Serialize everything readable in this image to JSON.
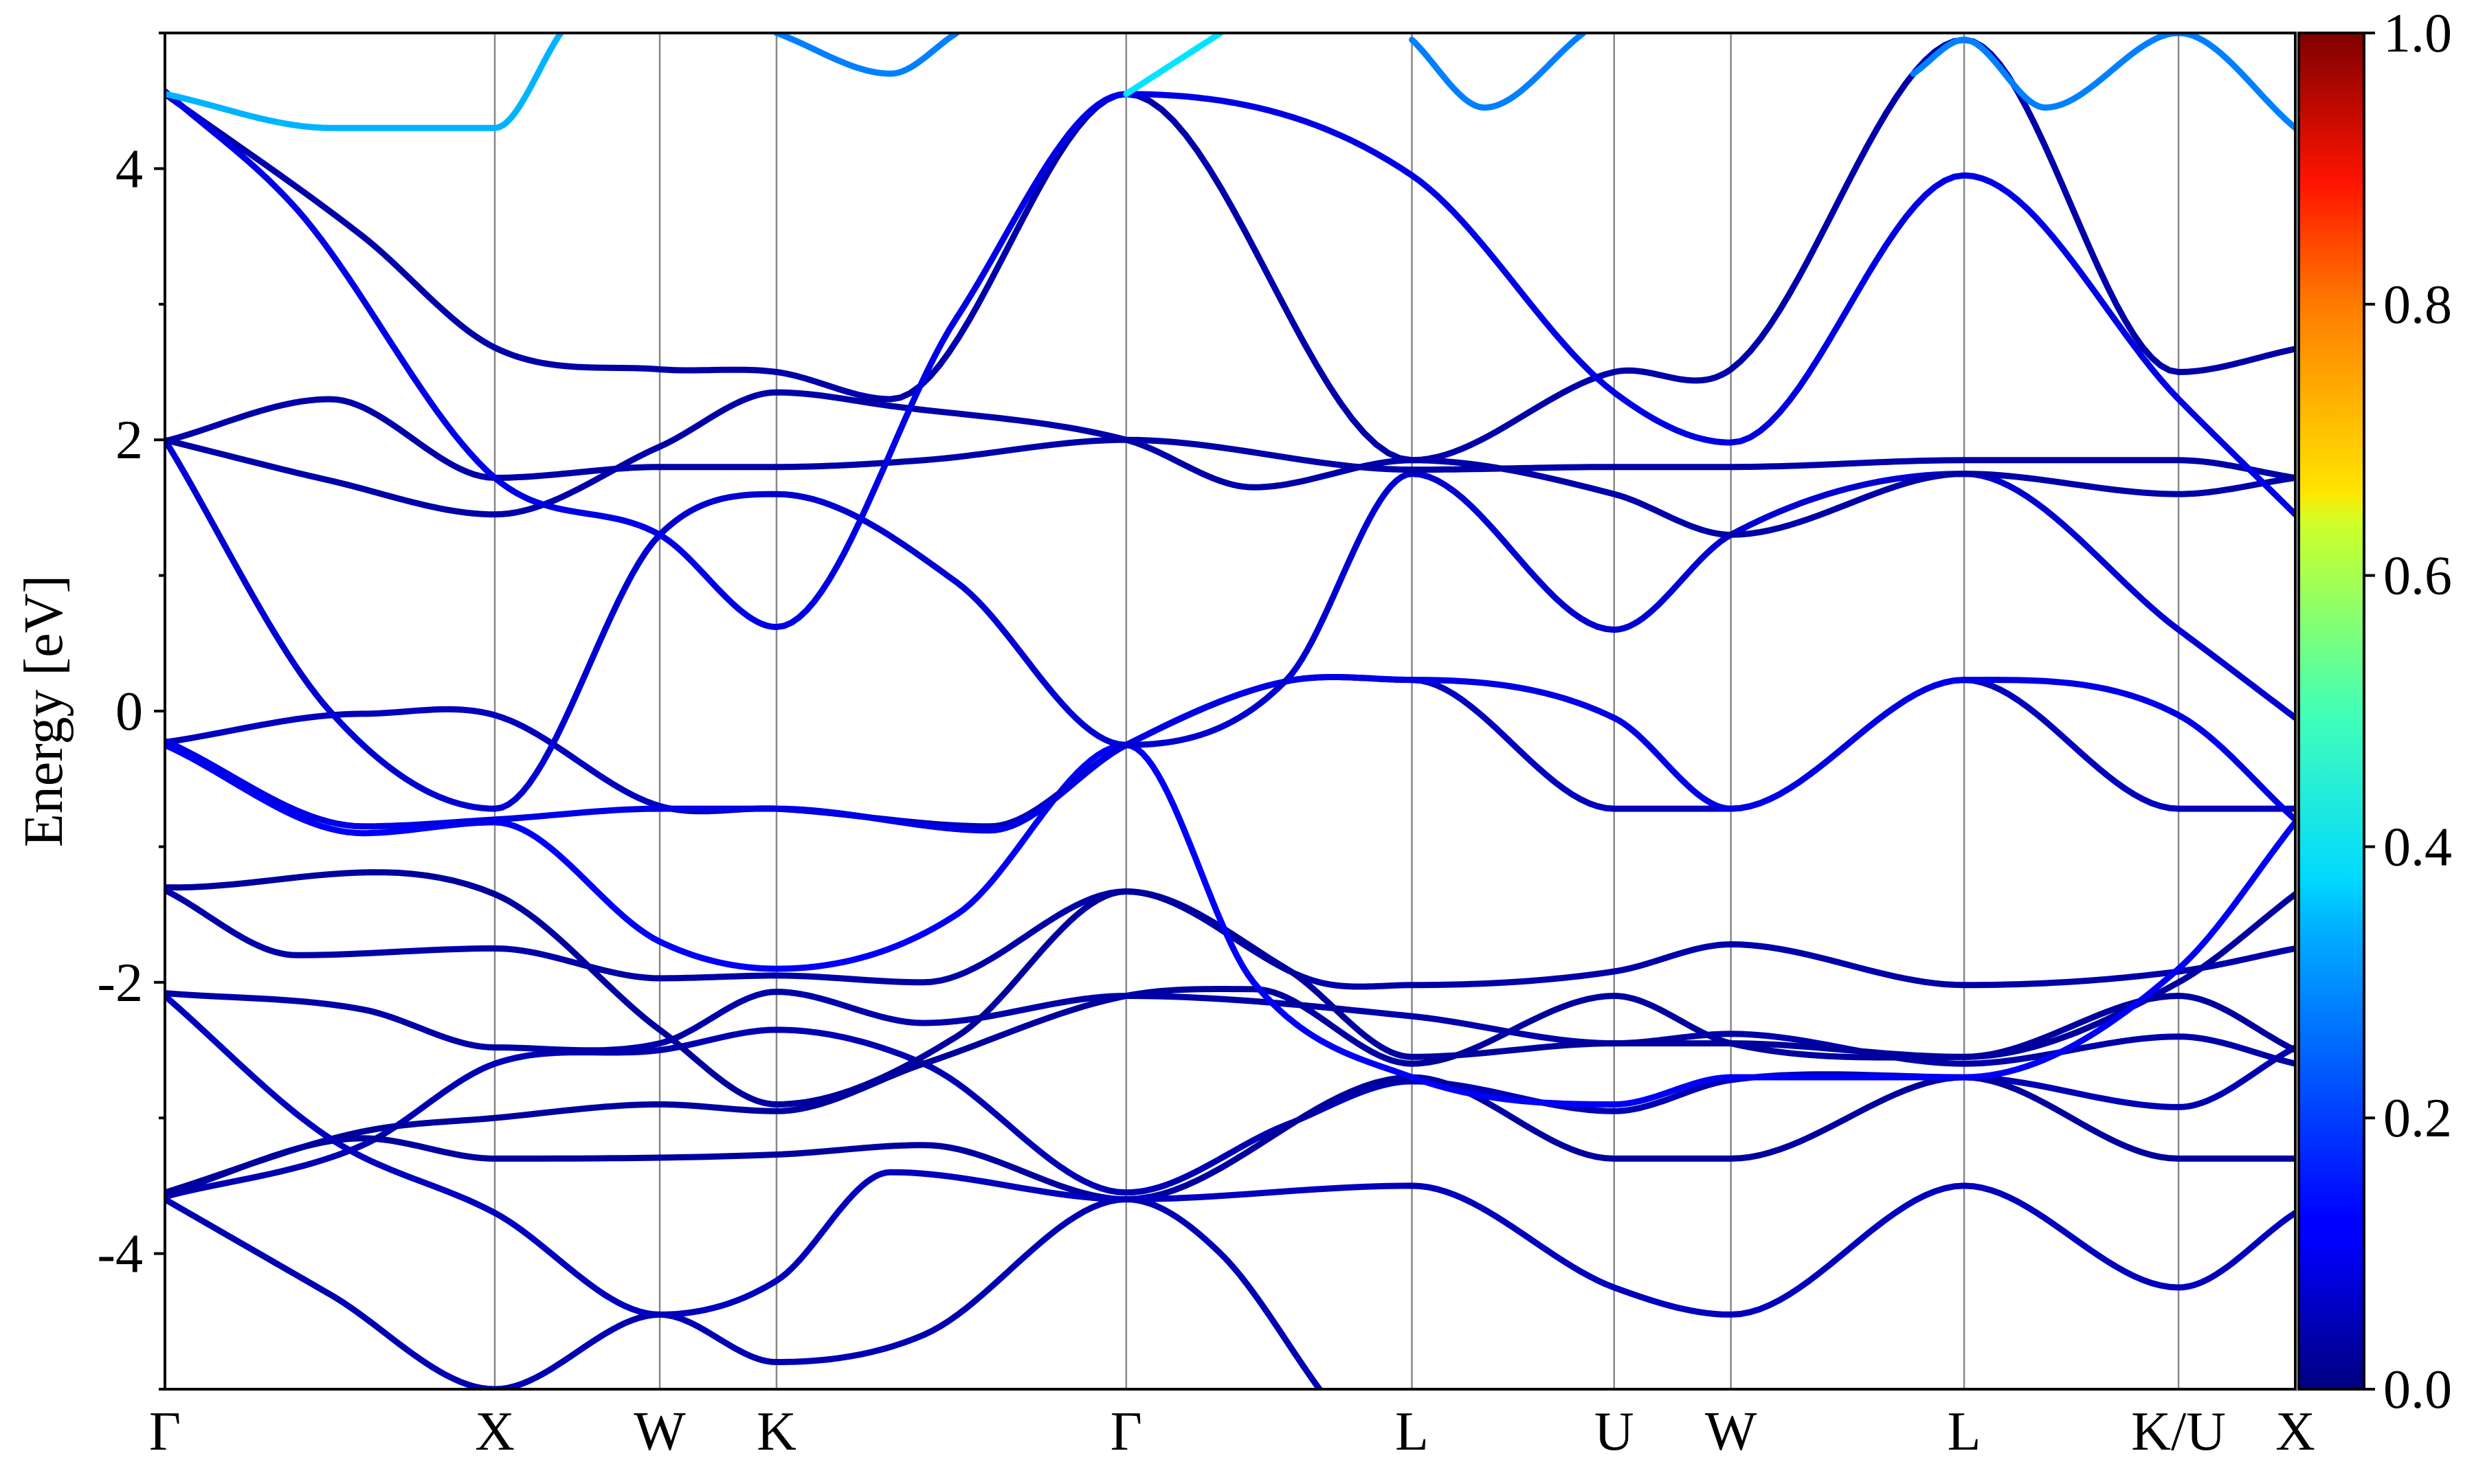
{
  "chart_data": {
    "type": "line",
    "title": "",
    "xlabel": "",
    "ylabel": "Energy [eV]",
    "ylim": [
      -5,
      5
    ],
    "grid": "vertical lines at high-symmetry points",
    "x_ticks": [
      {
        "label": "Γ",
        "x": 0.0
      },
      {
        "label": "X",
        "x": 1.0
      },
      {
        "label": "W",
        "x": 1.5
      },
      {
        "label": "K",
        "x": 1.854
      },
      {
        "label": "Γ",
        "x": 2.914
      },
      {
        "label": "L",
        "x": 3.78
      },
      {
        "label": "U",
        "x": 4.393
      },
      {
        "label": "W",
        "x": 4.747
      },
      {
        "label": "L",
        "x": 5.454
      },
      {
        "label": "K/U",
        "x": 6.104
      },
      {
        "label": "X",
        "x": 6.458
      }
    ],
    "y_ticks": [
      -4,
      -2,
      0,
      2,
      4
    ],
    "colorbar": {
      "colormap": "jet",
      "range": [
        0.0,
        1.0
      ],
      "ticks": [
        "0.0",
        "0.2",
        "0.4",
        "0.6",
        "0.8",
        "1.0"
      ]
    },
    "series": [
      {
        "weight": 0.05,
        "points": [
          [
            0,
            -3.6
          ],
          [
            0.5,
            -4.3
          ],
          [
            1.0,
            -5.0
          ],
          [
            1.5,
            -4.45
          ],
          [
            1.854,
            -4.8
          ],
          [
            2.3,
            -4.6
          ],
          [
            2.914,
            -3.6
          ],
          [
            3.2,
            -4.0
          ],
          [
            3.5,
            -5.0
          ]
        ]
      },
      {
        "weight": 0.05,
        "points": [
          [
            0,
            -3.58
          ],
          [
            0.6,
            -3.2
          ],
          [
            1.0,
            -2.6
          ],
          [
            1.5,
            -2.5
          ],
          [
            1.854,
            -2.35
          ],
          [
            2.3,
            -2.6
          ],
          [
            2.914,
            -3.55
          ],
          [
            3.4,
            -3.05
          ],
          [
            3.78,
            -2.73
          ],
          [
            4.393,
            -2.95
          ],
          [
            4.747,
            -2.72
          ],
          [
            5.454,
            -2.7
          ],
          [
            6.104,
            -2.92
          ],
          [
            6.458,
            -2.48
          ]
        ]
      },
      {
        "weight": 0.03,
        "points": [
          [
            0,
            -3.55
          ],
          [
            0.6,
            -3.1
          ],
          [
            1.0,
            -3.0
          ],
          [
            1.5,
            -2.9
          ],
          [
            1.854,
            -2.95
          ],
          [
            2.3,
            -2.6
          ],
          [
            2.914,
            -2.1
          ],
          [
            3.3,
            -2.05
          ],
          [
            3.78,
            -2.6
          ],
          [
            4.393,
            -2.1
          ],
          [
            4.747,
            -2.45
          ],
          [
            5.454,
            -2.55
          ],
          [
            6.104,
            -2.0
          ],
          [
            6.458,
            -1.35
          ]
        ]
      },
      {
        "weight": 0.03,
        "points": [
          [
            0,
            -3.56
          ],
          [
            0.6,
            -3.15
          ],
          [
            1.0,
            -3.3
          ],
          [
            1.854,
            -3.27
          ],
          [
            2.3,
            -3.2
          ],
          [
            2.914,
            -3.6
          ],
          [
            3.78,
            -2.7
          ],
          [
            4.393,
            -3.3
          ],
          [
            4.747,
            -3.3
          ],
          [
            5.454,
            -2.7
          ],
          [
            6.104,
            -3.3
          ],
          [
            6.458,
            -3.3
          ]
        ]
      },
      {
        "weight": 0.04,
        "points": [
          [
            0,
            -2.08
          ],
          [
            0.6,
            -2.2
          ],
          [
            1.0,
            -2.48
          ],
          [
            1.5,
            -2.45
          ],
          [
            1.854,
            -2.07
          ],
          [
            2.3,
            -2.3
          ],
          [
            2.914,
            -2.1
          ],
          [
            3.78,
            -2.25
          ],
          [
            4.393,
            -2.45
          ],
          [
            4.747,
            -2.38
          ],
          [
            5.454,
            -2.6
          ],
          [
            6.104,
            -2.4
          ],
          [
            6.458,
            -2.6
          ]
        ]
      },
      {
        "weight": 0.06,
        "points": [
          [
            0,
            -2.1
          ],
          [
            0.5,
            -3.15
          ],
          [
            1.0,
            -3.7
          ],
          [
            1.5,
            -4.45
          ],
          [
            1.854,
            -4.2
          ],
          [
            2.2,
            -3.4
          ],
          [
            2.914,
            -3.6
          ],
          [
            3.78,
            -3.5
          ],
          [
            4.393,
            -4.25
          ],
          [
            4.747,
            -4.45
          ],
          [
            5.454,
            -3.5
          ],
          [
            6.104,
            -4.25
          ],
          [
            6.458,
            -3.7
          ]
        ]
      },
      {
        "weight": 0.04,
        "points": [
          [
            0,
            -1.32
          ],
          [
            0.4,
            -1.8
          ],
          [
            1.0,
            -1.75
          ],
          [
            1.5,
            -1.97
          ],
          [
            1.854,
            -1.95
          ],
          [
            2.3,
            -2.0
          ],
          [
            2.914,
            -1.33
          ],
          [
            3.5,
            -2.0
          ],
          [
            3.78,
            -2.02
          ],
          [
            4.393,
            -1.92
          ],
          [
            4.747,
            -1.72
          ],
          [
            5.454,
            -2.02
          ],
          [
            6.104,
            -1.92
          ],
          [
            6.458,
            -1.75
          ]
        ]
      },
      {
        "weight": 0.03,
        "points": [
          [
            0,
            -1.3
          ],
          [
            1.0,
            -1.35
          ],
          [
            1.5,
            -2.35
          ],
          [
            1.854,
            -2.9
          ],
          [
            2.4,
            -2.4
          ],
          [
            2.914,
            -1.33
          ],
          [
            3.4,
            -1.9
          ],
          [
            3.78,
            -2.55
          ],
          [
            4.393,
            -2.45
          ],
          [
            4.747,
            -2.45
          ],
          [
            5.454,
            -2.55
          ],
          [
            6.104,
            -2.1
          ],
          [
            6.458,
            -2.5
          ]
        ]
      },
      {
        "weight": 0.12,
        "points": [
          [
            0,
            -0.25
          ],
          [
            0.6,
            -0.9
          ],
          [
            1.0,
            -0.82
          ],
          [
            1.5,
            -1.7
          ],
          [
            1.854,
            -1.9
          ],
          [
            2.4,
            -1.5
          ],
          [
            2.914,
            -0.25
          ],
          [
            3.3,
            -2.0
          ],
          [
            3.78,
            -2.7
          ],
          [
            4.393,
            -2.9
          ],
          [
            4.747,
            -2.7
          ],
          [
            5.454,
            -2.7
          ],
          [
            6.104,
            -1.9
          ],
          [
            6.458,
            -0.82
          ]
        ]
      },
      {
        "weight": 0.06,
        "points": [
          [
            0,
            -0.23
          ],
          [
            0.6,
            -0.02
          ],
          [
            1.0,
            -0.03
          ],
          [
            1.5,
            -0.7
          ],
          [
            1.854,
            -0.72
          ],
          [
            2.5,
            -0.85
          ],
          [
            2.914,
            -0.25
          ],
          [
            3.4,
            0.22
          ],
          [
            3.78,
            0.23
          ],
          [
            4.393,
            -0.72
          ],
          [
            4.747,
            -0.72
          ],
          [
            5.454,
            0.23
          ],
          [
            6.104,
            -0.72
          ],
          [
            6.458,
            -0.72
          ]
        ]
      },
      {
        "weight": 0.1,
        "points": [
          [
            0,
            -0.22
          ],
          [
            0.6,
            -0.85
          ],
          [
            1.0,
            -0.8
          ],
          [
            1.5,
            -0.72
          ],
          [
            1.854,
            -0.72
          ],
          [
            2.5,
            -0.88
          ],
          [
            2.914,
            -0.25
          ],
          [
            3.4,
            0.22
          ],
          [
            3.78,
            0.23
          ],
          [
            4.393,
            -0.05
          ],
          [
            4.747,
            -0.72
          ],
          [
            5.454,
            0.23
          ],
          [
            6.104,
            -0.03
          ],
          [
            6.458,
            -0.8
          ]
        ]
      },
      {
        "weight": 0.08,
        "points": [
          [
            0,
            2.0
          ],
          [
            0.5,
            0.0
          ],
          [
            1.0,
            -0.72
          ],
          [
            1.5,
            1.3
          ],
          [
            1.854,
            1.6
          ],
          [
            2.4,
            0.95
          ],
          [
            2.914,
            -0.25
          ],
          [
            3.4,
            0.23
          ],
          [
            3.78,
            1.75
          ],
          [
            4.393,
            0.6
          ],
          [
            4.747,
            1.3
          ],
          [
            5.454,
            1.75
          ],
          [
            6.104,
            0.6
          ],
          [
            6.458,
            -0.05
          ]
        ]
      },
      {
        "weight": 0.04,
        "points": [
          [
            0,
            2.0
          ],
          [
            0.5,
            1.7
          ],
          [
            1.0,
            1.45
          ],
          [
            1.5,
            1.95
          ],
          [
            1.854,
            2.35
          ],
          [
            2.2,
            2.25
          ],
          [
            2.914,
            2.0
          ],
          [
            3.3,
            1.65
          ],
          [
            3.78,
            1.85
          ],
          [
            4.393,
            1.6
          ],
          [
            4.747,
            1.3
          ],
          [
            5.454,
            1.75
          ],
          [
            6.104,
            1.6
          ],
          [
            6.458,
            1.72
          ]
        ]
      },
      {
        "weight": 0.04,
        "points": [
          [
            0,
            1.99
          ],
          [
            0.5,
            2.3
          ],
          [
            1.0,
            1.72
          ],
          [
            1.5,
            1.8
          ],
          [
            1.854,
            1.8
          ],
          [
            2.3,
            1.85
          ],
          [
            2.914,
            2.0
          ],
          [
            3.78,
            1.78
          ],
          [
            4.393,
            1.8
          ],
          [
            4.747,
            1.8
          ],
          [
            5.454,
            1.85
          ],
          [
            6.104,
            1.85
          ],
          [
            6.458,
            1.72
          ]
        ]
      },
      {
        "weight": 0.04,
        "points": [
          [
            0,
            4.55
          ],
          [
            0.6,
            3.5
          ],
          [
            1.0,
            2.68
          ],
          [
            1.5,
            2.52
          ],
          [
            1.854,
            2.5
          ],
          [
            2.2,
            2.3
          ],
          [
            2.914,
            4.55
          ],
          [
            3.78,
            1.85
          ],
          [
            4.393,
            2.5
          ],
          [
            4.747,
            2.52
          ],
          [
            5.454,
            4.95
          ],
          [
            6.104,
            2.5
          ],
          [
            6.458,
            2.67
          ]
        ]
      },
      {
        "weight": 0.1,
        "points": [
          [
            0,
            4.57
          ],
          [
            0.4,
            3.7
          ],
          [
            1.0,
            1.72
          ],
          [
            1.5,
            1.3
          ],
          [
            1.854,
            0.62
          ],
          [
            2.4,
            2.9
          ],
          [
            2.914,
            4.55
          ],
          [
            3.78,
            3.95
          ],
          [
            4.393,
            2.35
          ],
          [
            4.747,
            1.98
          ],
          [
            5.454,
            3.95
          ],
          [
            6.104,
            2.3
          ],
          [
            6.458,
            1.45
          ]
        ]
      },
      {
        "weight": 0.3,
        "points": [
          [
            0,
            4.55
          ],
          [
            0.5,
            4.3
          ],
          [
            1.0,
            4.3
          ],
          [
            1.2,
            5.0
          ]
        ]
      },
      {
        "weight": 0.25,
        "points": [
          [
            1.854,
            5.0
          ],
          [
            2.2,
            4.7
          ],
          [
            2.4,
            5.0
          ]
        ]
      },
      {
        "weight": 0.35,
        "points": [
          [
            2.914,
            4.55
          ],
          [
            3.2,
            5.0
          ]
        ]
      },
      {
        "weight": 0.25,
        "points": [
          [
            3.78,
            4.95
          ],
          [
            4.0,
            4.45
          ],
          [
            4.3,
            5.0
          ]
        ]
      },
      {
        "weight": 0.25,
        "points": [
          [
            5.3,
            4.7
          ],
          [
            5.454,
            4.95
          ],
          [
            5.7,
            4.45
          ],
          [
            6.104,
            5.0
          ],
          [
            6.458,
            4.3
          ]
        ]
      }
    ]
  }
}
